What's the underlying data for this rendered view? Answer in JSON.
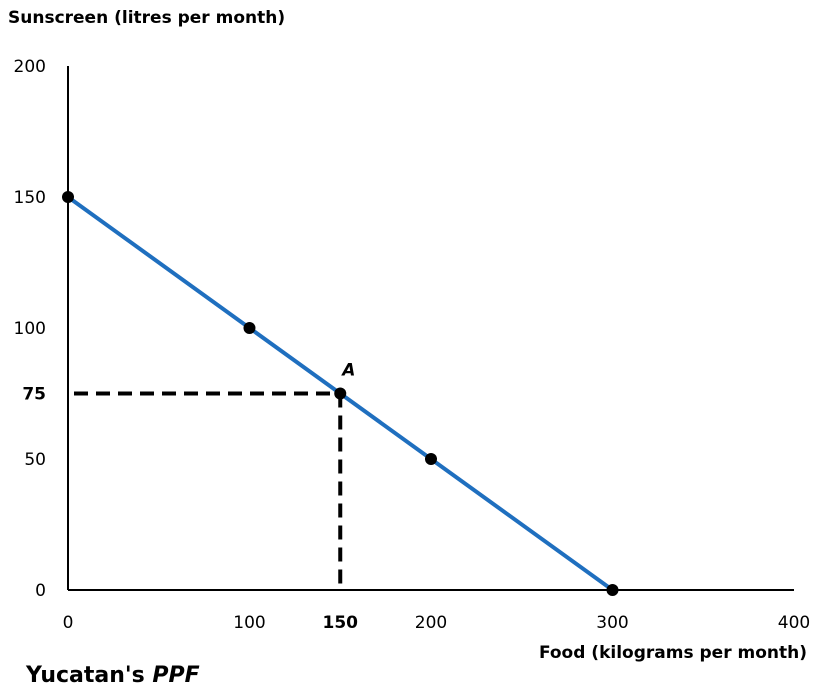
{
  "chart_data": {
    "type": "line",
    "title_main": "Yucatan's ",
    "title_italic": "PPF",
    "xlabel": "Food (kilograms per month)",
    "ylabel": "Sunscreen (litres per month)",
    "xlim": [
      0,
      400
    ],
    "ylim": [
      0,
      200
    ],
    "x_ticks": [
      {
        "value": 0,
        "label": "0",
        "bold": false
      },
      {
        "value": 100,
        "label": "100",
        "bold": false
      },
      {
        "value": 150,
        "label": "150",
        "bold": true
      },
      {
        "value": 200,
        "label": "200",
        "bold": false
      },
      {
        "value": 300,
        "label": "300",
        "bold": false
      },
      {
        "value": 400,
        "label": "400",
        "bold": false
      }
    ],
    "y_ticks": [
      {
        "value": 0,
        "label": "0",
        "bold": false
      },
      {
        "value": 50,
        "label": "50",
        "bold": false
      },
      {
        "value": 75,
        "label": "75",
        "bold": true
      },
      {
        "value": 100,
        "label": "100",
        "bold": false
      },
      {
        "value": 150,
        "label": "150",
        "bold": false
      },
      {
        "value": 200,
        "label": "200",
        "bold": false
      }
    ],
    "series": [
      {
        "color": "#1f6fbf",
        "x": [
          0,
          100,
          150,
          200,
          300
        ],
        "y": [
          150,
          100,
          75,
          50,
          0
        ]
      }
    ],
    "marked_points": [
      {
        "x": 0,
        "y": 150,
        "label": ""
      },
      {
        "x": 100,
        "y": 100,
        "label": ""
      },
      {
        "x": 150,
        "y": 75,
        "label": "A"
      },
      {
        "x": 200,
        "y": 50,
        "label": ""
      },
      {
        "x": 300,
        "y": 0,
        "label": ""
      }
    ],
    "reference_point": {
      "x": 150,
      "y": 75
    },
    "grid": false
  }
}
